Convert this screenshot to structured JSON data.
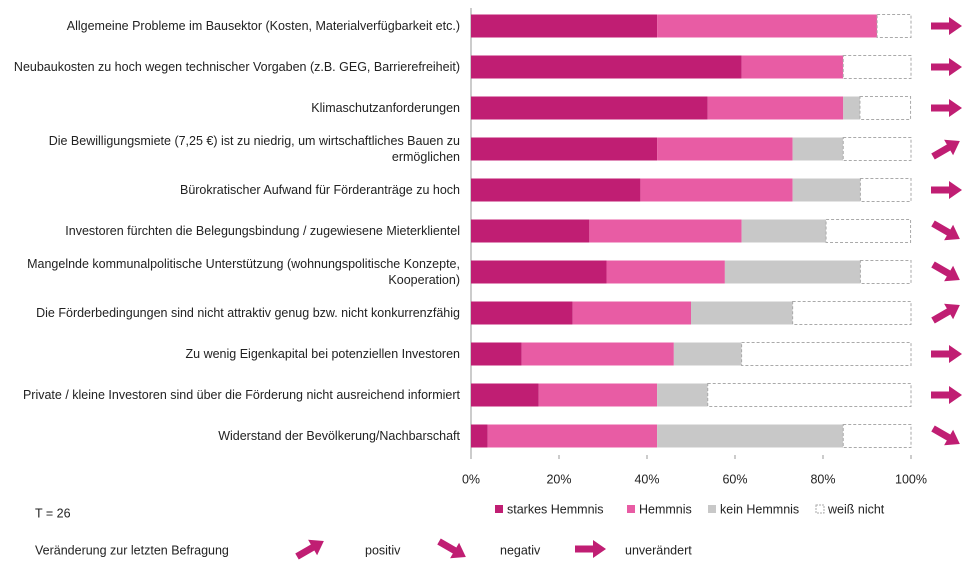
{
  "chart_data": {
    "type": "stacked_barh",
    "categories": [
      "Allgemeine Probleme im Bausektor (Kosten, Materialverfügbarkeit etc.)",
      "Neubaukosten zu hoch wegen technischer Vorgaben (z.B. GEG, Barrierefreiheit)",
      "Klimaschutzanforderungen",
      "Die Bewilligungsmiete (7,25 €) ist zu niedrig, um wirtschaftliches Bauen zu ermöglichen",
      "Bürokratischer Aufwand für Förderanträge zu hoch",
      "Investoren fürchten die Belegungsbindung / zugewiesene Mieterklientel",
      "Mangelnde kommunalpolitische Unterstützung (wohnungspolitische Konzepte, Kooperation)",
      "Die Förderbedingungen sind nicht attraktiv genug bzw. nicht konkurrenzfähig",
      "Zu wenig Eigenkapital bei potenziellen Investoren",
      "Private / kleine Investoren sind über die Förderung nicht ausreichend informiert",
      "Widerstand der Bevölkerung/Nachbarschaft"
    ],
    "series": [
      {
        "name": "starkes Hemmnis",
        "color": "#c01e73",
        "values": [
          42.3,
          61.5,
          53.8,
          42.3,
          38.5,
          26.9,
          30.8,
          23.1,
          11.5,
          15.4,
          3.8
        ]
      },
      {
        "name": "Hemmnis",
        "color": "#e85ca4",
        "values": [
          50.0,
          23.1,
          30.8,
          30.8,
          34.6,
          34.6,
          26.9,
          26.9,
          34.6,
          26.9,
          38.5
        ]
      },
      {
        "name": "kein Hemmnis",
        "color": "#c8c8c8",
        "values": [
          0,
          0,
          3.8,
          11.5,
          15.4,
          19.2,
          30.8,
          23.1,
          15.4,
          11.5,
          42.3
        ]
      },
      {
        "name": "weiß nicht",
        "color": "#ffffff",
        "values": [
          7.7,
          15.4,
          11.5,
          15.4,
          11.5,
          19.2,
          11.5,
          26.9,
          38.5,
          46.2,
          15.4
        ]
      }
    ],
    "xlim": [
      0,
      100
    ],
    "xticks": [
      {
        "value": 0,
        "label": "0%"
      },
      {
        "value": 20,
        "label": "20%"
      },
      {
        "value": 40,
        "label": "40%"
      },
      {
        "value": 60,
        "label": "60%"
      },
      {
        "value": 80,
        "label": "80%"
      },
      {
        "value": 100,
        "label": "100%"
      }
    ],
    "note": "T = 26",
    "change_title": "Veränderung zur letzten Befragung",
    "change_legend": [
      "positiv",
      "negativ",
      "unverändert"
    ],
    "changes": [
      "unverändert",
      "unverändert",
      "unverändert",
      "positiv",
      "unverändert",
      "negativ",
      "negativ",
      "positiv",
      "unverändert",
      "unverändert",
      "negativ"
    ],
    "arrow_color": "#c01e73"
  }
}
